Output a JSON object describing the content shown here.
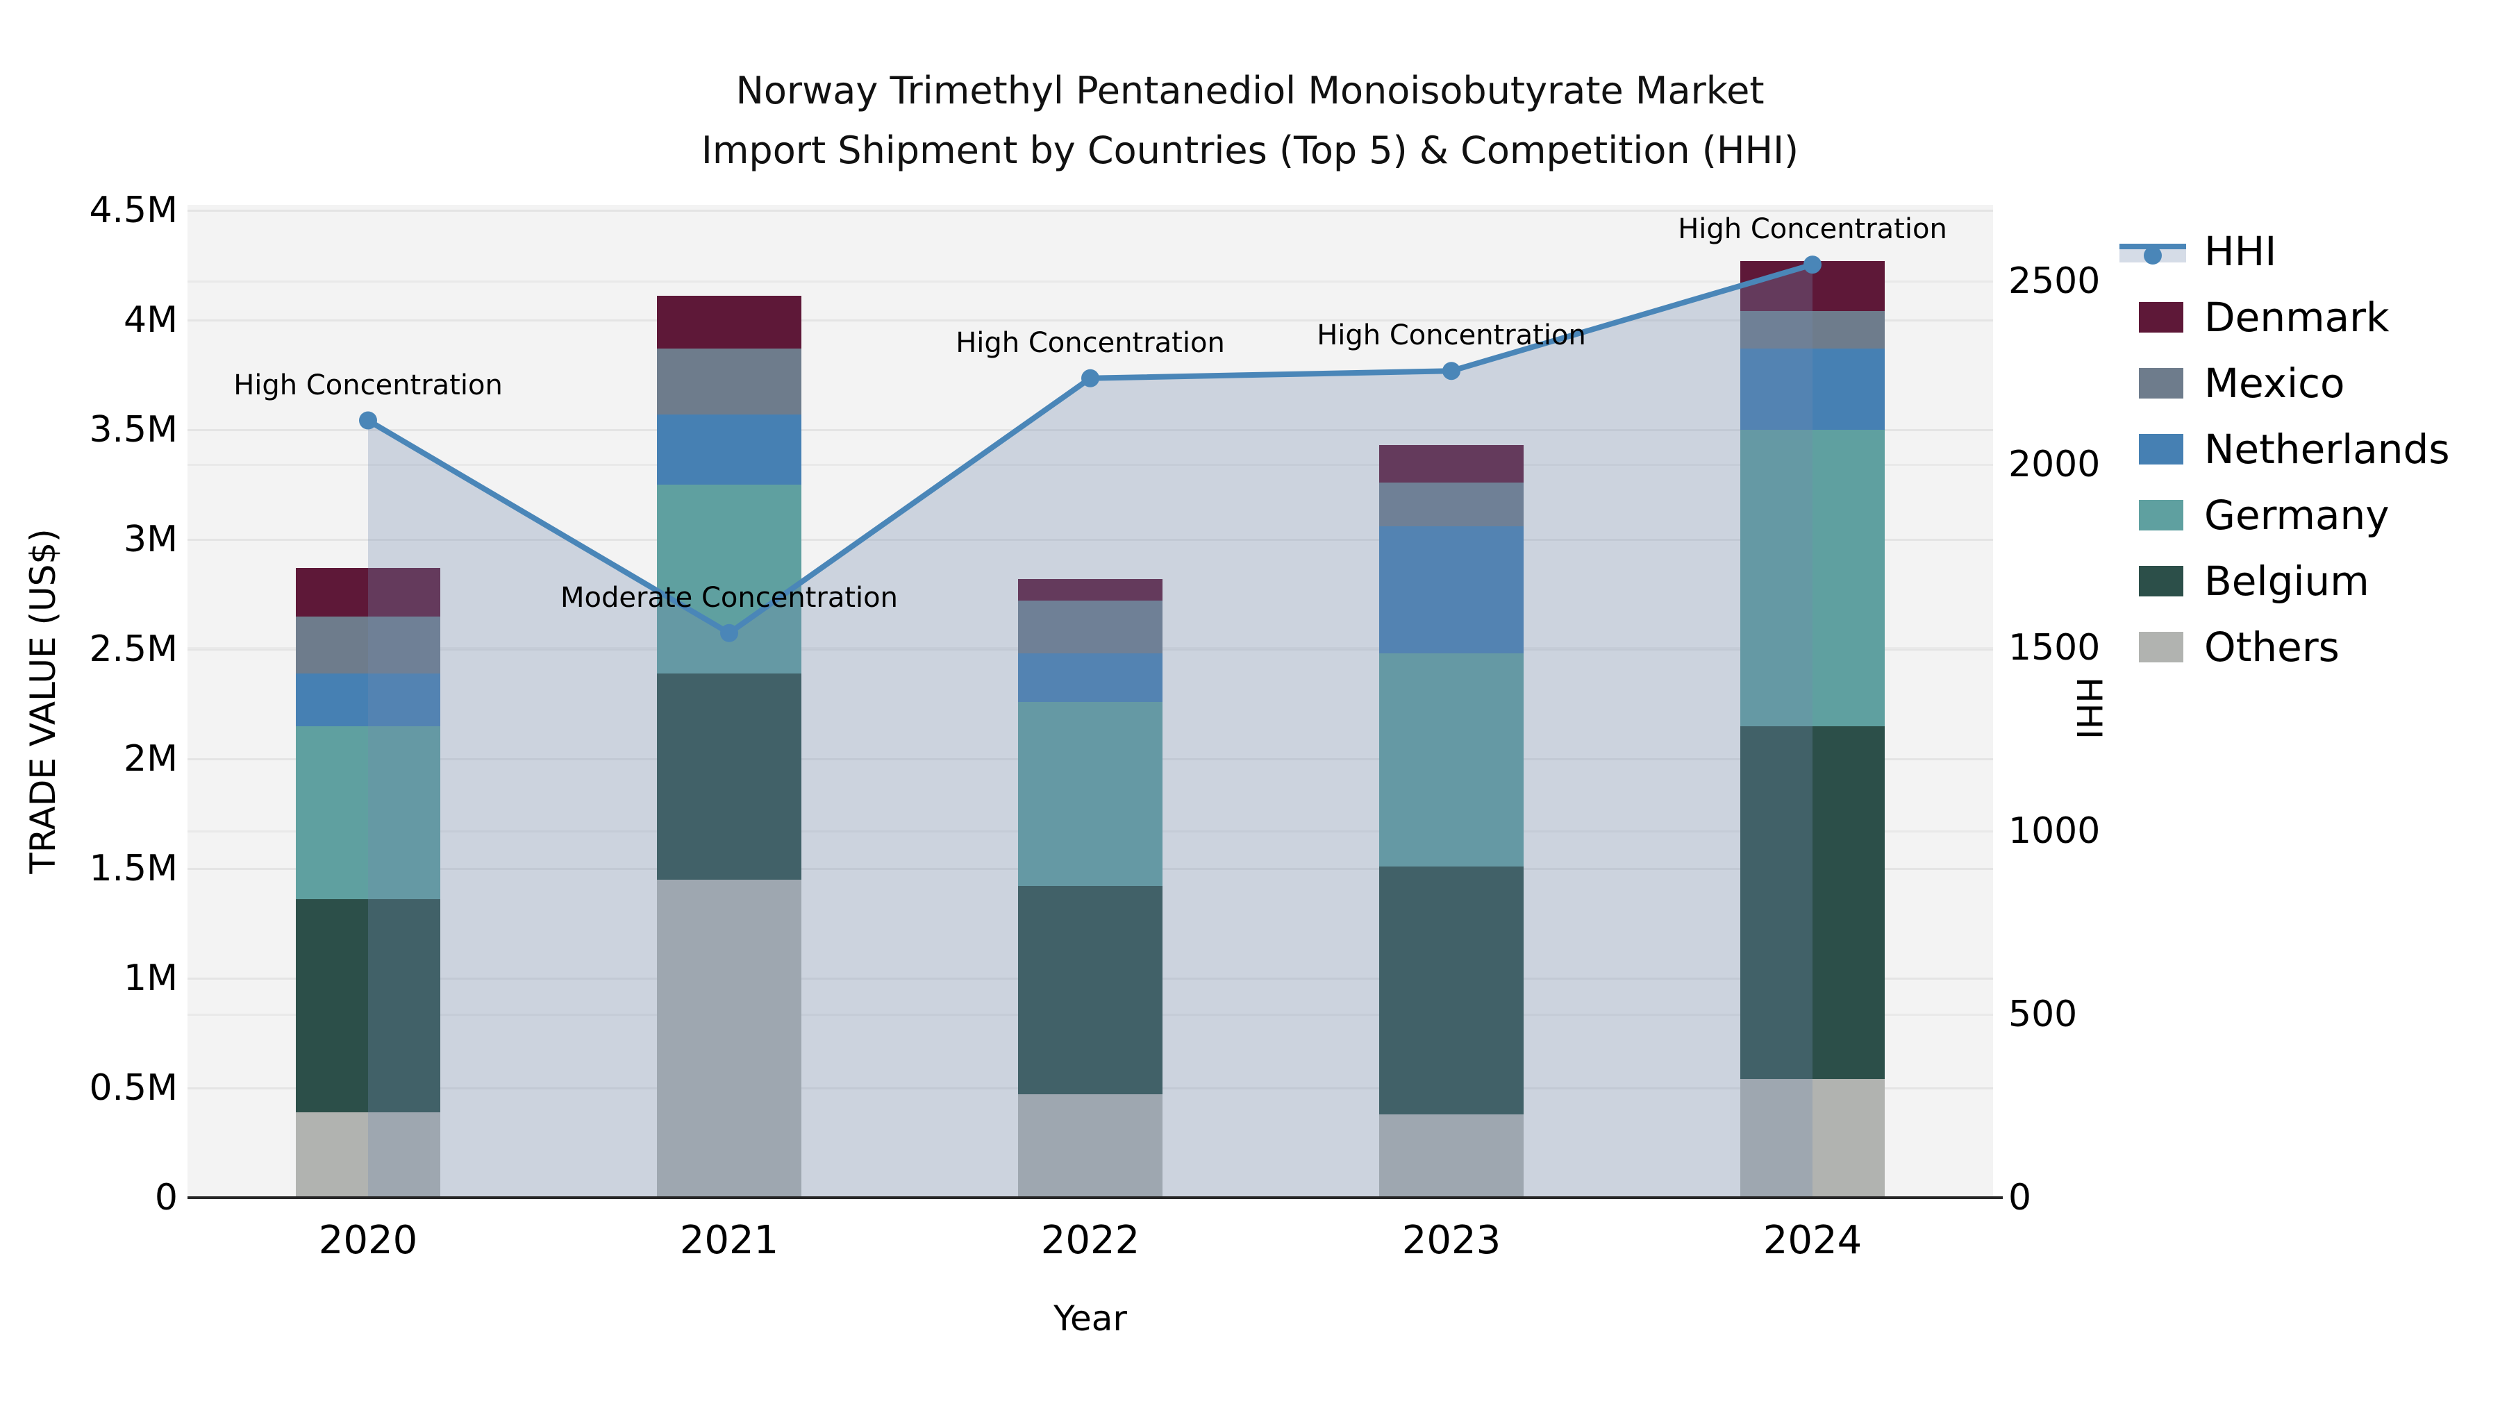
{
  "title": {
    "line1": "Norway Trimethyl Pentanediol Monoisobutyrate Market",
    "line2": "Import Shipment by Countries (Top 5) & Competition (HHI)"
  },
  "axes": {
    "x": {
      "label": "Year",
      "ticks": [
        "2020",
        "2021",
        "2022",
        "2023",
        "2024"
      ]
    },
    "y_left": {
      "label": "TRADE VALUE (US$)",
      "ticks": [
        "0",
        "0.5M",
        "1M",
        "1.5M",
        "2M",
        "2.5M",
        "3M",
        "3.5M",
        "4M",
        "4.5M"
      ],
      "tick_values_m": [
        0,
        0.5,
        1,
        1.5,
        2,
        2.5,
        3,
        3.5,
        4,
        4.5
      ]
    },
    "y_right": {
      "label": "HHI",
      "ticks": [
        "0",
        "500",
        "1000",
        "1500",
        "2000",
        "2500"
      ],
      "tick_values": [
        0,
        500,
        1000,
        1500,
        2000,
        2500
      ]
    }
  },
  "legend": {
    "items": [
      {
        "label": "HHI",
        "kind": "line",
        "color": "#4a86b8"
      },
      {
        "label": "Denmark",
        "kind": "patch",
        "color": "#5e1838"
      },
      {
        "label": "Mexico",
        "kind": "patch",
        "color": "#6e7c8c"
      },
      {
        "label": "Netherlands",
        "kind": "patch",
        "color": "#4680b3"
      },
      {
        "label": "Germany",
        "kind": "patch",
        "color": "#5fa0a0"
      },
      {
        "label": "Belgium",
        "kind": "patch",
        "color": "#2c4f49"
      },
      {
        "label": "Others",
        "kind": "patch",
        "color": "#b1b3b0"
      }
    ]
  },
  "chart_data": {
    "type": "bar",
    "subtype": "stacked-bars-with-line-overlay",
    "title": "Norway Trimethyl Pentanediol Monoisobutyrate Market Import Shipment by Countries (Top 5) & Competition (HHI)",
    "xlabel": "Year",
    "ylabel_left": "TRADE VALUE (US$)",
    "ylabel_right": "HHI",
    "categories": [
      "2020",
      "2021",
      "2022",
      "2023",
      "2024"
    ],
    "stack_order_bottom_to_top": [
      "Others",
      "Belgium",
      "Germany",
      "Netherlands",
      "Mexico",
      "Denmark"
    ],
    "series": [
      {
        "name": "Others",
        "unit": "M US$",
        "color": "#b1b3b0",
        "values": [
          0.39,
          1.45,
          0.47,
          0.38,
          0.54
        ]
      },
      {
        "name": "Belgium",
        "unit": "M US$",
        "color": "#2c4f49",
        "values": [
          0.97,
          0.94,
          0.95,
          1.13,
          1.61
        ]
      },
      {
        "name": "Germany",
        "unit": "M US$",
        "color": "#5fa0a0",
        "values": [
          0.79,
          0.86,
          0.84,
          0.97,
          1.35
        ]
      },
      {
        "name": "Netherlands",
        "unit": "M US$",
        "color": "#4680b3",
        "values": [
          0.24,
          0.32,
          0.22,
          0.58,
          0.37
        ]
      },
      {
        "name": "Mexico",
        "unit": "M US$",
        "color": "#6e7c8c",
        "values": [
          0.26,
          0.3,
          0.24,
          0.2,
          0.17
        ]
      },
      {
        "name": "Denmark",
        "unit": "M US$",
        "color": "#5e1838",
        "values": [
          0.22,
          0.24,
          0.1,
          0.17,
          0.23
        ]
      }
    ],
    "bar_totals_m": [
      2.87,
      4.11,
      2.82,
      3.43,
      4.27
    ],
    "line_series": {
      "name": "HHI",
      "color": "#4a86b8",
      "area_fill": "rgba(115,139,175,0.30)",
      "values": [
        2120,
        1540,
        2235,
        2255,
        2545
      ]
    },
    "annotations": [
      {
        "x": "2020",
        "text": "High Concentration"
      },
      {
        "x": "2021",
        "text": "Moderate Concentration"
      },
      {
        "x": "2022",
        "text": "High Concentration"
      },
      {
        "x": "2023",
        "text": "High Concentration"
      },
      {
        "x": "2024",
        "text": "High Concentration"
      }
    ],
    "ylim_left_m": [
      0,
      4.525
    ],
    "ylim_right": [
      0,
      2708
    ],
    "grid": "horizontal, both axes tick levels",
    "legend_position": "right-outside",
    "plot_background": "#f3f3f3"
  }
}
